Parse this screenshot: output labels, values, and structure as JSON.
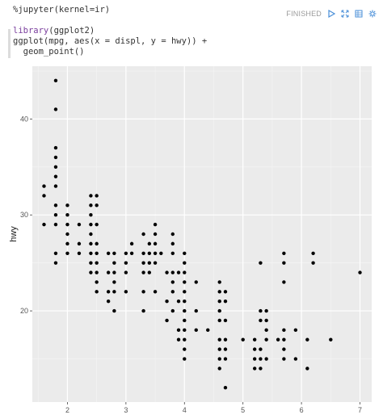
{
  "cell": {
    "code_lines": [
      [
        {
          "t": "%jupyter(kernel=ir)",
          "c": ""
        }
      ],
      [
        {
          "t": "",
          "c": ""
        }
      ],
      [
        {
          "t": "library",
          "c": "kw"
        },
        {
          "t": "(ggplot2)",
          "c": ""
        }
      ],
      [
        {
          "t": "ggplot(mpg, aes(x = displ, y = hwy)) +",
          "c": ""
        }
      ],
      [
        {
          "t": "  geom_point()",
          "c": ""
        }
      ]
    ],
    "status": "FINISHED",
    "icons": [
      "run-icon",
      "expand-icon",
      "table-icon",
      "settings-icon"
    ]
  },
  "chart_data": {
    "type": "scatter",
    "ylabel": "hwy",
    "xlabel": "",
    "xlim": [
      1.4,
      7.2
    ],
    "ylim": [
      10.5,
      45.5
    ],
    "x_ticks": [
      2,
      3,
      4,
      5,
      6,
      7
    ],
    "y_ticks": [
      20,
      30,
      40
    ],
    "grid": true,
    "background": "#ebebeb",
    "point_color": "#000000",
    "points": [
      [
        1.8,
        44
      ],
      [
        1.8,
        41
      ],
      [
        1.6,
        33
      ],
      [
        1.6,
        32
      ],
      [
        1.6,
        29
      ],
      [
        1.8,
        37
      ],
      [
        1.8,
        36
      ],
      [
        1.8,
        35
      ],
      [
        1.8,
        34
      ],
      [
        1.8,
        33
      ],
      [
        1.8,
        31
      ],
      [
        1.8,
        30
      ],
      [
        1.8,
        29
      ],
      [
        1.8,
        26
      ],
      [
        1.8,
        25
      ],
      [
        2.0,
        31
      ],
      [
        2.0,
        30
      ],
      [
        2.0,
        29
      ],
      [
        2.0,
        28
      ],
      [
        2.0,
        27
      ],
      [
        2.0,
        26
      ],
      [
        2.2,
        29
      ],
      [
        2.2,
        27
      ],
      [
        2.2,
        26
      ],
      [
        2.4,
        32
      ],
      [
        2.4,
        31
      ],
      [
        2.4,
        30
      ],
      [
        2.4,
        29
      ],
      [
        2.4,
        28
      ],
      [
        2.4,
        27
      ],
      [
        2.4,
        26
      ],
      [
        2.4,
        25
      ],
      [
        2.4,
        24
      ],
      [
        2.5,
        32
      ],
      [
        2.5,
        31
      ],
      [
        2.5,
        29
      ],
      [
        2.5,
        27
      ],
      [
        2.5,
        26
      ],
      [
        2.5,
        25
      ],
      [
        2.5,
        24
      ],
      [
        2.5,
        23
      ],
      [
        2.5,
        22
      ],
      [
        2.7,
        26
      ],
      [
        2.7,
        24
      ],
      [
        2.7,
        22
      ],
      [
        2.7,
        21
      ],
      [
        2.8,
        26
      ],
      [
        2.8,
        25
      ],
      [
        2.8,
        24
      ],
      [
        2.8,
        23
      ],
      [
        2.8,
        22
      ],
      [
        2.8,
        20
      ],
      [
        3.0,
        26
      ],
      [
        3.0,
        25
      ],
      [
        3.0,
        24
      ],
      [
        3.0,
        22
      ],
      [
        3.1,
        27
      ],
      [
        3.1,
        26
      ],
      [
        3.3,
        28
      ],
      [
        3.3,
        26
      ],
      [
        3.3,
        25
      ],
      [
        3.3,
        24
      ],
      [
        3.3,
        22
      ],
      [
        3.3,
        20
      ],
      [
        3.4,
        27
      ],
      [
        3.4,
        26
      ],
      [
        3.4,
        25
      ],
      [
        3.4,
        24
      ],
      [
        3.5,
        29
      ],
      [
        3.5,
        28
      ],
      [
        3.5,
        27
      ],
      [
        3.5,
        26
      ],
      [
        3.5,
        25
      ],
      [
        3.5,
        22
      ],
      [
        3.6,
        26
      ],
      [
        3.7,
        24
      ],
      [
        3.7,
        21
      ],
      [
        3.7,
        19
      ],
      [
        3.8,
        28
      ],
      [
        3.8,
        27
      ],
      [
        3.8,
        26
      ],
      [
        3.8,
        24
      ],
      [
        3.8,
        23
      ],
      [
        3.8,
        22
      ],
      [
        3.8,
        20
      ],
      [
        3.9,
        24
      ],
      [
        3.9,
        21
      ],
      [
        3.9,
        18
      ],
      [
        3.9,
        17
      ],
      [
        4.0,
        26
      ],
      [
        4.0,
        25
      ],
      [
        4.0,
        24
      ],
      [
        4.0,
        23
      ],
      [
        4.0,
        22
      ],
      [
        4.0,
        21
      ],
      [
        4.0,
        20
      ],
      [
        4.0,
        19
      ],
      [
        4.0,
        18
      ],
      [
        4.0,
        17
      ],
      [
        4.0,
        16
      ],
      [
        4.0,
        15
      ],
      [
        4.2,
        23
      ],
      [
        4.2,
        20
      ],
      [
        4.2,
        18
      ],
      [
        4.4,
        18
      ],
      [
        4.6,
        23
      ],
      [
        4.6,
        22
      ],
      [
        4.6,
        21
      ],
      [
        4.6,
        20
      ],
      [
        4.6,
        19
      ],
      [
        4.6,
        17
      ],
      [
        4.6,
        16
      ],
      [
        4.6,
        15
      ],
      [
        4.6,
        14
      ],
      [
        4.7,
        22
      ],
      [
        4.7,
        21
      ],
      [
        4.7,
        19
      ],
      [
        4.7,
        17
      ],
      [
        4.7,
        16
      ],
      [
        4.7,
        15
      ],
      [
        4.7,
        12
      ],
      [
        5.0,
        17
      ],
      [
        5.2,
        17
      ],
      [
        5.2,
        16
      ],
      [
        5.2,
        15
      ],
      [
        5.2,
        14
      ],
      [
        5.3,
        25
      ],
      [
        5.3,
        20
      ],
      [
        5.3,
        19
      ],
      [
        5.3,
        16
      ],
      [
        5.3,
        15
      ],
      [
        5.3,
        14
      ],
      [
        5.4,
        20
      ],
      [
        5.4,
        19
      ],
      [
        5.4,
        18
      ],
      [
        5.4,
        17
      ],
      [
        5.4,
        15
      ],
      [
        5.6,
        17
      ],
      [
        5.7,
        26
      ],
      [
        5.7,
        25
      ],
      [
        5.7,
        23
      ],
      [
        5.7,
        18
      ],
      [
        5.7,
        17
      ],
      [
        5.7,
        16
      ],
      [
        5.7,
        15
      ],
      [
        5.9,
        18
      ],
      [
        5.9,
        15
      ],
      [
        6.1,
        17
      ],
      [
        6.1,
        14
      ],
      [
        6.2,
        26
      ],
      [
        6.2,
        25
      ],
      [
        6.5,
        17
      ],
      [
        7.0,
        24
      ]
    ]
  }
}
